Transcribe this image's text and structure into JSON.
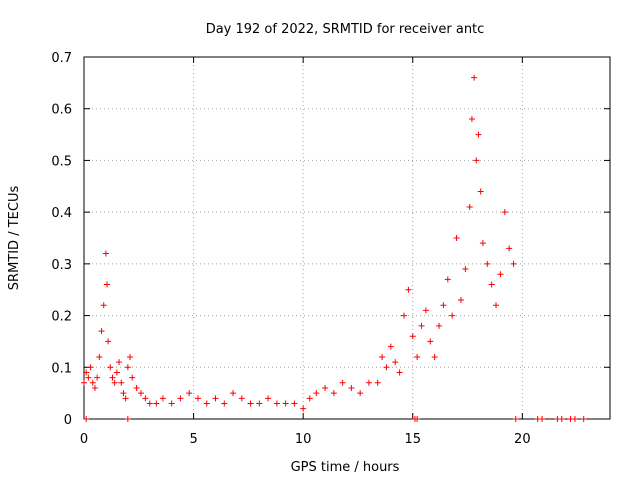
{
  "chart_data": {
    "type": "scatter",
    "title": "Day 192 of 2022, SRMTID for receiver antc",
    "xlabel": "GPS time / hours",
    "ylabel": "SRMTID / TECUs",
    "xlim": [
      0,
      24
    ],
    "ylim": [
      0,
      0.7
    ],
    "xticks": [
      0,
      5,
      10,
      15,
      20
    ],
    "yticks": [
      0,
      0.1,
      0.2,
      0.3,
      0.4,
      0.5,
      0.6,
      0.7
    ],
    "xtick_labels": [
      "0",
      "5",
      "10",
      "15",
      "20"
    ],
    "ytick_labels": [
      "0",
      "0.1",
      "0.2",
      "0.3",
      "0.4",
      "0.5",
      "0.6",
      "0.7"
    ],
    "grid": true,
    "marker": "+",
    "series": [
      {
        "name": "SRMTID",
        "color": "#ff0000",
        "x": [
          0.0,
          0.1,
          0.2,
          0.3,
          0.4,
          0.5,
          0.6,
          0.7,
          0.8,
          0.9,
          1.0,
          1.05,
          1.1,
          1.2,
          1.3,
          1.4,
          1.5,
          1.6,
          1.7,
          1.8,
          1.9,
          2.0,
          2.1,
          2.2,
          2.4,
          2.6,
          2.8,
          3.0,
          3.3,
          3.6,
          4.0,
          4.4,
          4.8,
          5.2,
          5.6,
          6.0,
          6.4,
          6.8,
          7.2,
          7.6,
          8.0,
          8.4,
          8.8,
          9.2,
          9.6,
          10.0,
          10.3,
          10.6,
          11.0,
          11.4,
          11.8,
          12.2,
          12.6,
          13.0,
          13.4,
          13.6,
          13.8,
          14.0,
          14.2,
          14.4,
          14.6,
          14.8,
          15.0,
          15.2,
          15.4,
          15.6,
          15.8,
          16.0,
          16.2,
          16.4,
          16.6,
          16.8,
          17.0,
          17.2,
          17.4,
          17.6,
          17.7,
          17.8,
          17.9,
          18.0,
          18.1,
          18.2,
          18.4,
          18.6,
          18.8,
          19.0,
          19.2,
          19.4,
          19.6
        ],
        "y": [
          0.07,
          0.09,
          0.08,
          0.1,
          0.07,
          0.06,
          0.08,
          0.12,
          0.17,
          0.22,
          0.32,
          0.26,
          0.15,
          0.1,
          0.08,
          0.07,
          0.09,
          0.11,
          0.07,
          0.05,
          0.04,
          0.1,
          0.12,
          0.08,
          0.06,
          0.05,
          0.04,
          0.03,
          0.03,
          0.04,
          0.03,
          0.04,
          0.05,
          0.04,
          0.03,
          0.04,
          0.03,
          0.05,
          0.04,
          0.03,
          0.03,
          0.04,
          0.03,
          0.03,
          0.03,
          0.02,
          0.04,
          0.05,
          0.06,
          0.05,
          0.07,
          0.06,
          0.05,
          0.07,
          0.07,
          0.12,
          0.1,
          0.14,
          0.11,
          0.09,
          0.2,
          0.25,
          0.16,
          0.12,
          0.18,
          0.21,
          0.15,
          0.12,
          0.18,
          0.22,
          0.27,
          0.2,
          0.35,
          0.23,
          0.29,
          0.41,
          0.58,
          0.66,
          0.5,
          0.55,
          0.44,
          0.34,
          0.3,
          0.26,
          0.22,
          0.28,
          0.4,
          0.33,
          0.3
        ]
      },
      {
        "name": "zero values",
        "color": "#ff0000",
        "x": [
          0.1,
          2.0,
          15.1,
          15.2,
          19.7,
          20.7,
          20.9,
          21.6,
          21.8,
          22.2,
          22.4,
          22.8
        ],
        "y": [
          0,
          0,
          0,
          0,
          0,
          0,
          0,
          0,
          0,
          0,
          0,
          0
        ]
      }
    ]
  }
}
